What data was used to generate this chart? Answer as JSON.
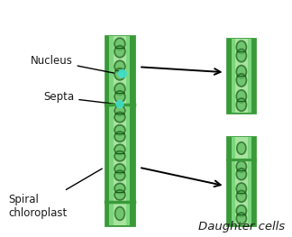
{
  "bg_color": "#ffffff",
  "cell_outer_color": "#3a9a3a",
  "cell_inner_color": "#7dd67d",
  "cell_fill_color": "#a8e4a0",
  "spiral_dark": "#1a5c1a",
  "spiral_light": "#5ab85a",
  "nucleus_color": "#40e0d0",
  "label_color": "#1a1a1a",
  "labels": {
    "nucleus": "Nucleus",
    "septa": "Septa",
    "spiral": "Spiral\nchloroplast",
    "daughter": "Daughter cells"
  },
  "label_fontsize": 8.5,
  "daughter_fontsize": 9.5
}
